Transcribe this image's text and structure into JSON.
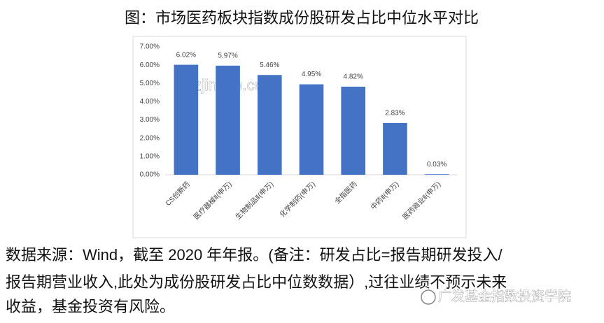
{
  "chart_data": {
    "type": "bar",
    "title": "图：市场医药板块指数成份股研发占比中位水平对比",
    "categories": [
      "CS创新药",
      "医疗器械Ⅱ(申万)",
      "生物制品Ⅱ(申万)",
      "化学制药(申万)",
      "全指医药",
      "中药Ⅱ(申万)",
      "医药商业Ⅱ(申万)"
    ],
    "values": [
      6.02,
      5.97,
      5.46,
      4.95,
      4.82,
      2.83,
      0.03
    ],
    "value_labels": [
      "6.02%",
      "5.97%",
      "5.46%",
      "4.95%",
      "4.82%",
      "2.83%",
      "0.03%"
    ],
    "color": "#4472c4",
    "ylim": [
      0,
      7
    ],
    "yticks": [
      {
        "value": 0,
        "label": "0.00%"
      },
      {
        "value": 1,
        "label": "1.00%"
      },
      {
        "value": 2,
        "label": "2.00%"
      },
      {
        "value": 3,
        "label": "3.00%"
      },
      {
        "value": 4,
        "label": "4.00%"
      },
      {
        "value": 5,
        "label": "5.00%"
      },
      {
        "value": 6,
        "label": "6.00%"
      },
      {
        "value": 7,
        "label": "7.00%"
      }
    ],
    "grid": false
  },
  "watermark": "szjinhao.com",
  "caption_lines": [
    "数据来源：Wind，截至 2020 年年报。(备注：研发占比=报告期研发投入/",
    "报告期营业收入,此处为成份股研发占比中位数数据）,过往业绩不预示未来",
    "收益，基金投资有风险。"
  ],
  "brand": "广发基金指数投资学院"
}
